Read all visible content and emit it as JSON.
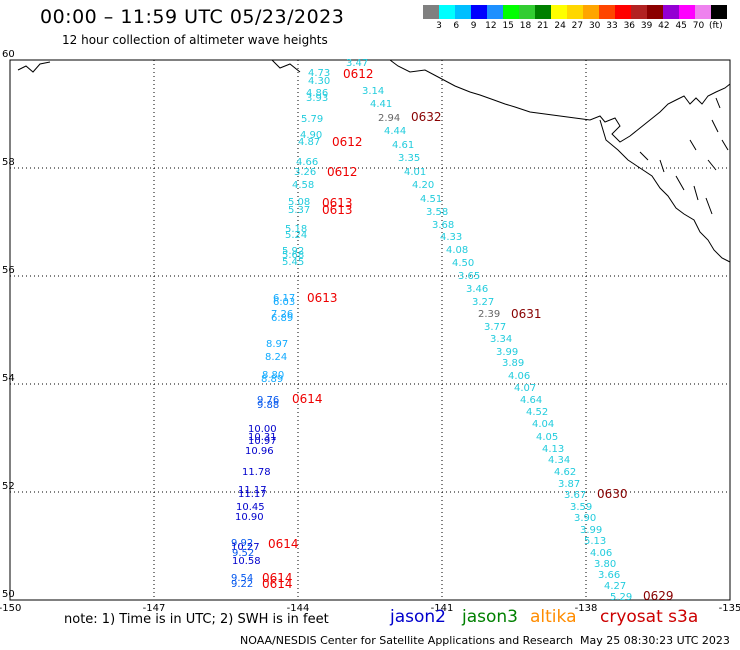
{
  "header": {
    "title": "00:00 – 11:59 UTC 05/23/2023",
    "subtitle": "12 hour collection of altimeter wave heights"
  },
  "colorbar": {
    "colors": [
      "#808080",
      "#00ffff",
      "#00bfff",
      "#0000ff",
      "#1e90ff",
      "#00ff00",
      "#32cd32",
      "#008000",
      "#ffff00",
      "#ffd700",
      "#ffa500",
      "#ff4500",
      "#ff0000",
      "#b22222",
      "#8b0000",
      "#9400d3",
      "#ff00ff",
      "#ee82ee",
      "#000000"
    ],
    "labels": [
      "3",
      "6",
      "9",
      "12",
      "15",
      "18",
      "21",
      "24",
      "27",
      "30",
      "33",
      "36",
      "39",
      "42",
      "45",
      "70",
      "(ft)"
    ]
  },
  "axes": {
    "lon_labels": [
      "-150",
      "-147",
      "-144",
      "-141",
      "-138",
      "-135"
    ],
    "lat_labels": [
      "60",
      "58",
      "56",
      "54",
      "52",
      "50"
    ]
  },
  "track_labels": {
    "t0612a": "0612",
    "t0612b": "0612",
    "t0612c": "0612",
    "t0613a": "0613",
    "t0613b": "0613",
    "t0613c": "0613",
    "t0614a": "0614",
    "t0614b": "0614",
    "t0614c": "0614",
    "t0614d": "0614",
    "t0632": "0632",
    "t0631": "0631",
    "t0630": "0630",
    "t0629": "0629"
  },
  "track_a": [
    "3.47",
    "4.73",
    "4.30",
    "4.86",
    "3.93",
    "5.79",
    "4.90",
    "4.87",
    "4.66",
    "3.26",
    "4.58",
    "5.08",
    "5.37",
    "5.18",
    "5.24",
    "5.92",
    "5.68",
    "5.45",
    "6.17",
    "6.03",
    "7.26",
    "6.89",
    "8.97",
    "8.24",
    "8.80",
    "8.89",
    "9.76",
    "9.88",
    "10.00",
    "10.31",
    "10.97",
    "10.96",
    "11.78",
    "11.17",
    "11.17",
    "10.45",
    "10.90",
    "9.92",
    "10.27",
    "9.52",
    "10.58",
    "9.54",
    "9.22"
  ],
  "track_b": [
    "3.14",
    "4.41",
    "2.94",
    "4.44",
    "4.61",
    "3.35",
    "4.01",
    "4.20",
    "4.51",
    "3.58",
    "3.68",
    "4.33",
    "4.08",
    "4.50",
    "3.65",
    "3.46",
    "3.27",
    "2.39",
    "3.77",
    "3.34",
    "3.99",
    "3.89",
    "4.06",
    "4.07",
    "4.64",
    "4.52",
    "4.04",
    "4.05",
    "4.13",
    "4.34",
    "4.62",
    "3.87",
    "3.67",
    "3.59",
    "3.90",
    "3.99",
    "5.13",
    "4.06",
    "3.80",
    "3.66",
    "4.27",
    "5.29"
  ],
  "footer": {
    "note": "note:  1) Time is in UTC;  2) SWH is in feet",
    "satellites": [
      {
        "name": "jason2",
        "color": "#0000cc"
      },
      {
        "name": "jason3",
        "color": "#008000"
      },
      {
        "name": "altika",
        "color": "#ff8c00"
      },
      {
        "name": "cryosat s3a",
        "color": "#cc0000"
      }
    ],
    "credit": "NOAA/NESDIS Center for Satellite Applications and Research",
    "timestamp": "May 25 08:30:23 UTC 2023"
  }
}
